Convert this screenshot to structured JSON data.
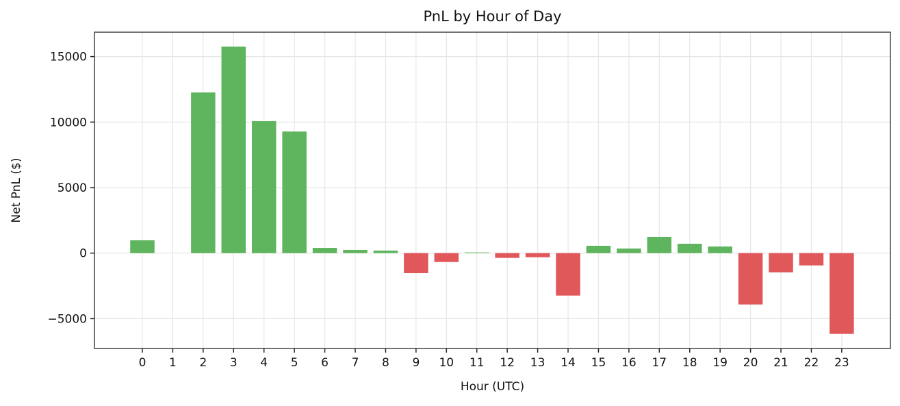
{
  "chart_data": {
    "type": "bar",
    "title": "PnL by Hour of Day",
    "xlabel": "Hour (UTC)",
    "ylabel": "Net PnL ($)",
    "categories": [
      "0",
      "1",
      "2",
      "3",
      "4",
      "5",
      "6",
      "7",
      "8",
      "9",
      "10",
      "11",
      "12",
      "13",
      "14",
      "15",
      "16",
      "17",
      "18",
      "19",
      "20",
      "21",
      "22",
      "23"
    ],
    "values": [
      980,
      0,
      12260,
      15760,
      10070,
      9280,
      400,
      245,
      195,
      -1530,
      -680,
      50,
      -365,
      -315,
      -3240,
      560,
      350,
      1240,
      715,
      505,
      -3920,
      -1465,
      -940,
      -6165
    ],
    "ylim": [
      -7200,
      16900
    ],
    "yticks": [
      -5000,
      0,
      5000,
      10000,
      15000
    ],
    "ytick_labels": [
      "−5000",
      "0",
      "5000",
      "10000",
      "15000"
    ],
    "grid": true,
    "legend": null,
    "colors": {
      "positive": "#59b358",
      "negative": "#e05356",
      "grid": "#e6e6e6",
      "axis": "#444444"
    }
  }
}
